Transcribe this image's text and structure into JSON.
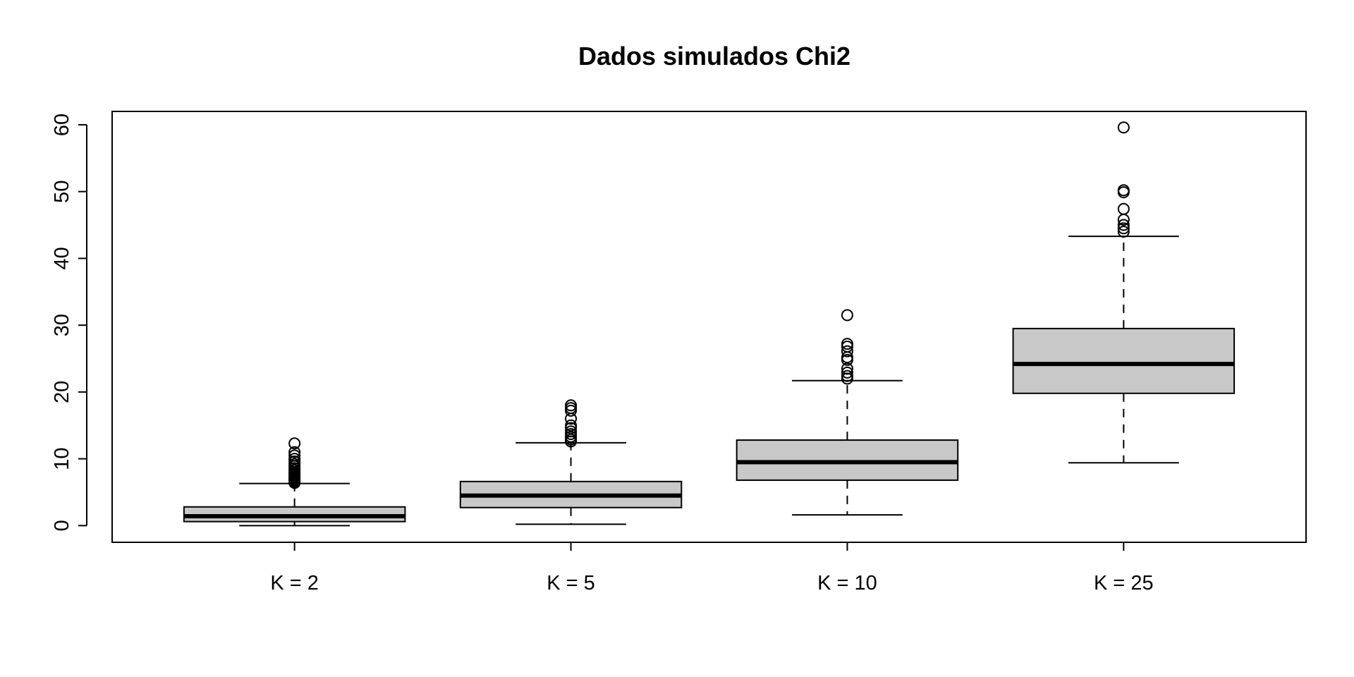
{
  "chart_data": {
    "type": "box",
    "title": "Dados simulados Chi2",
    "xlabel": "",
    "ylabel": "",
    "ylim": [
      -2.5,
      62
    ],
    "yticks": [
      0,
      10,
      20,
      30,
      40,
      50,
      60
    ],
    "categories": [
      "K = 2",
      "K = 5",
      "K = 10",
      "K = 25"
    ],
    "boxes": [
      {
        "label": "K = 2",
        "whisker_low": 0.0,
        "q1": 0.6,
        "median": 1.4,
        "q3": 2.8,
        "whisker_high": 6.3,
        "outliers": [
          6.4,
          6.6,
          6.8,
          7.0,
          7.2,
          7.4,
          7.6,
          7.8,
          8.0,
          8.3,
          8.6,
          8.9,
          9.2,
          9.6,
          10.0,
          10.5,
          11.0,
          12.3
        ]
      },
      {
        "label": "K = 5",
        "whisker_low": 0.2,
        "q1": 2.7,
        "median": 4.5,
        "q3": 6.6,
        "whisker_high": 12.4,
        "outliers": [
          12.6,
          12.9,
          13.3,
          13.7,
          14.1,
          14.6,
          15.0,
          16.0,
          17.2,
          17.6,
          18.0
        ]
      },
      {
        "label": "K = 10",
        "whisker_low": 1.6,
        "q1": 6.8,
        "median": 9.5,
        "q3": 12.8,
        "whisker_high": 21.7,
        "outliers": [
          22.0,
          22.4,
          22.9,
          23.5,
          24.8,
          25.2,
          26.1,
          26.8,
          27.2,
          31.5
        ]
      },
      {
        "label": "K = 25",
        "whisker_low": 9.4,
        "q1": 19.8,
        "median": 24.2,
        "q3": 29.5,
        "whisker_high": 43.3,
        "outliers": [
          44.0,
          44.5,
          45.0,
          45.8,
          47.4,
          49.9,
          50.2,
          59.6
        ]
      }
    ],
    "colors": {
      "box_fill": "#c8c8c8",
      "stroke": "#000000"
    },
    "grid": false,
    "legend": "none"
  }
}
